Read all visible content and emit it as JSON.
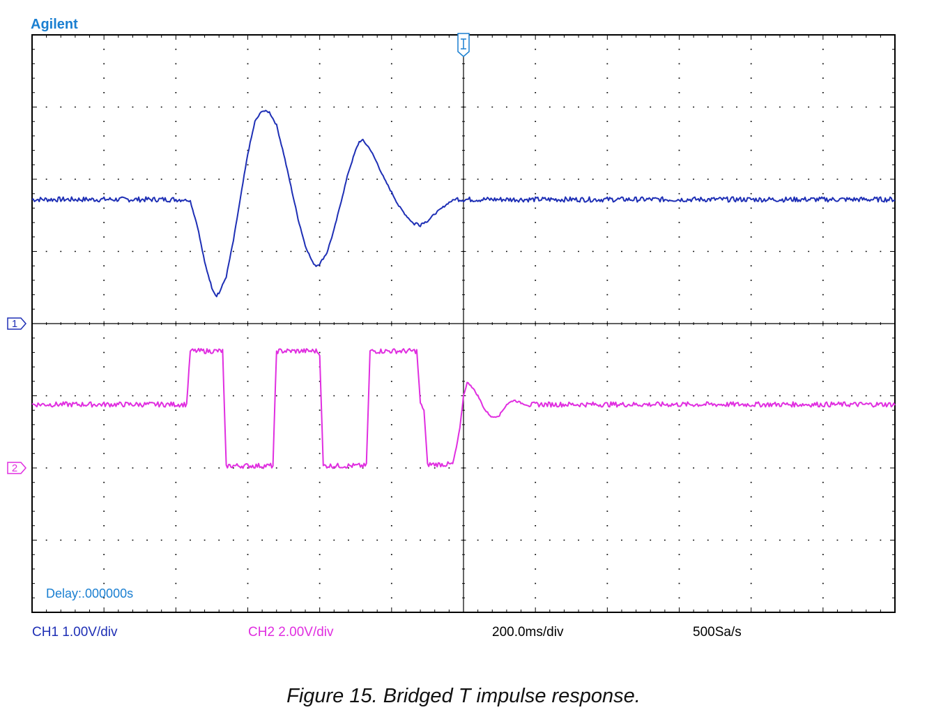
{
  "brand": "Agilent",
  "delay": "Delay:.000000s",
  "status_bar": {
    "ch1": "CH1 1.00V/div",
    "ch2": "CH2 2.00V/div",
    "timebase": "200.0ms/div",
    "sample_rate": "500Sa/s"
  },
  "markers": {
    "ch1": "1",
    "ch2": "2"
  },
  "caption": "Figure 15. Bridged T impulse response.",
  "colors": {
    "ch1": "#1e2fb5",
    "ch2": "#e02ee0",
    "brand": "#1a7fd1",
    "grid": "#000000"
  },
  "chart_data": {
    "type": "line",
    "x_unit": "div",
    "y_unit": "div",
    "grid": true,
    "divisions": {
      "x": 12,
      "y": 8
    },
    "series": [
      {
        "name": "CH1",
        "points": [
          [
            0,
            1.72
          ],
          [
            2.1,
            1.72
          ],
          [
            2.2,
            1.7
          ],
          [
            2.3,
            1.35
          ],
          [
            2.4,
            0.85
          ],
          [
            2.5,
            0.5
          ],
          [
            2.55,
            0.4
          ],
          [
            2.6,
            0.42
          ],
          [
            2.7,
            0.65
          ],
          [
            2.8,
            1.15
          ],
          [
            2.9,
            1.75
          ],
          [
            3.0,
            2.35
          ],
          [
            3.1,
            2.8
          ],
          [
            3.2,
            2.95
          ],
          [
            3.3,
            2.93
          ],
          [
            3.4,
            2.75
          ],
          [
            3.5,
            2.35
          ],
          [
            3.6,
            1.9
          ],
          [
            3.7,
            1.45
          ],
          [
            3.8,
            1.08
          ],
          [
            3.9,
            0.85
          ],
          [
            3.95,
            0.8
          ],
          [
            4.0,
            0.83
          ],
          [
            4.1,
            0.98
          ],
          [
            4.2,
            1.3
          ],
          [
            4.3,
            1.7
          ],
          [
            4.4,
            2.1
          ],
          [
            4.5,
            2.4
          ],
          [
            4.55,
            2.52
          ],
          [
            4.6,
            2.54
          ],
          [
            4.7,
            2.42
          ],
          [
            4.8,
            2.22
          ],
          [
            4.9,
            2.0
          ],
          [
            5.0,
            1.82
          ],
          [
            5.1,
            1.63
          ],
          [
            5.2,
            1.5
          ],
          [
            5.3,
            1.39
          ],
          [
            5.4,
            1.38
          ],
          [
            5.5,
            1.42
          ],
          [
            5.6,
            1.52
          ],
          [
            5.7,
            1.6
          ],
          [
            5.8,
            1.68
          ],
          [
            5.9,
            1.73
          ],
          [
            6.0,
            1.72
          ],
          [
            12,
            1.72
          ]
        ]
      },
      {
        "name": "CH2",
        "points": [
          [
            0,
            -1.12
          ],
          [
            2.15,
            -1.12
          ],
          [
            2.2,
            -0.38
          ],
          [
            2.65,
            -0.38
          ],
          [
            2.7,
            -1.97
          ],
          [
            3.35,
            -1.97
          ],
          [
            3.4,
            -0.38
          ],
          [
            3.95,
            -0.38
          ],
          [
            4.0,
            -0.43
          ],
          [
            4.05,
            -1.97
          ],
          [
            4.65,
            -1.97
          ],
          [
            4.7,
            -0.38
          ],
          [
            5.35,
            -0.38
          ],
          [
            5.4,
            -1.1
          ],
          [
            5.45,
            -1.2
          ],
          [
            5.5,
            -1.95
          ],
          [
            5.85,
            -1.95
          ],
          [
            5.9,
            -1.72
          ],
          [
            5.95,
            -1.45
          ],
          [
            6.0,
            -1.0
          ],
          [
            6.05,
            -0.82
          ],
          [
            6.1,
            -0.85
          ],
          [
            6.2,
            -1.0
          ],
          [
            6.3,
            -1.2
          ],
          [
            6.4,
            -1.3
          ],
          [
            6.5,
            -1.27
          ],
          [
            6.6,
            -1.12
          ],
          [
            6.7,
            -1.06
          ],
          [
            6.8,
            -1.1
          ],
          [
            6.9,
            -1.13
          ],
          [
            7.0,
            -1.12
          ],
          [
            12,
            -1.12
          ]
        ]
      }
    ],
    "xlim": [
      0,
      12
    ],
    "ylim": [
      -4,
      4
    ]
  }
}
